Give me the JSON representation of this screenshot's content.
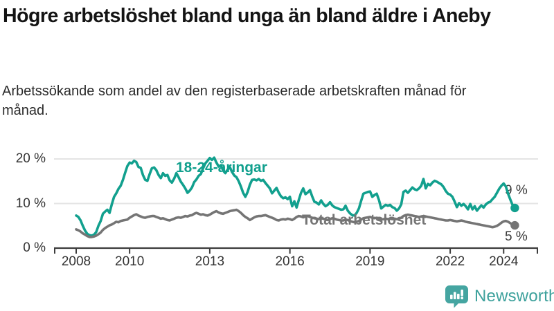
{
  "header": {
    "title": "Högre arbetslöshet bland unga än bland äldre i Aneby",
    "subtitle": "Arbetssökande som andel av den registerbaserade arbetskraften månad för månad."
  },
  "chart_data": {
    "type": "line",
    "title": "Högre arbetslöshet bland unga än bland äldre i Aneby",
    "subtitle": "Arbetssökande som andel av den registerbaserade arbetskraften månad för månad.",
    "x_start": "2008-01",
    "x_end": "2024-06",
    "x_interval": "monthly",
    "xticks": [
      2008,
      2010,
      2013,
      2016,
      2019,
      2022,
      2024
    ],
    "yticks": [
      {
        "value": 20,
        "label": "20 %"
      },
      {
        "value": 10,
        "label": "10 %"
      },
      {
        "value": 0,
        "label": "0 %"
      }
    ],
    "ylim": [
      0,
      21.7
    ],
    "grid": "horizontal",
    "series": [
      {
        "name": "18-24-åringar",
        "color": "#12a08e",
        "end_label": "9 %",
        "end_value": 9,
        "values": [
          7.3,
          7.0,
          6.2,
          5.0,
          3.9,
          3.2,
          2.9,
          2.8,
          3.0,
          3.6,
          5.0,
          6.1,
          7.7,
          8.2,
          8.6,
          7.9,
          9.8,
          11.5,
          12.3,
          13.3,
          14.0,
          15.3,
          16.9,
          18.4,
          19.2,
          19.0,
          19.6,
          19.3,
          18.2,
          18.0,
          16.4,
          15.3,
          15.1,
          16.6,
          17.9,
          18.1,
          17.5,
          16.4,
          15.7,
          16.8,
          16.2,
          16.4,
          15.2,
          14.7,
          15.6,
          16.8,
          15.9,
          14.9,
          14.2,
          13.4,
          12.4,
          12.9,
          13.6,
          14.8,
          15.4,
          16.2,
          16.6,
          17.9,
          19.0,
          19.6,
          20.2,
          19.8,
          20.3,
          19.2,
          18.3,
          18.6,
          17.4,
          16.8,
          17.6,
          18.2,
          17.1,
          16.3,
          15.9,
          15.0,
          13.8,
          12.4,
          11.5,
          12.6,
          14.2,
          15.3,
          15.4,
          15.2,
          15.5,
          15.1,
          15.3,
          14.6,
          14.0,
          13.4,
          12.3,
          12.9,
          13.5,
          12.4,
          11.6,
          11.2,
          11.4,
          11.0,
          11.5,
          9.4,
          10.5,
          9.1,
          10.8,
          12.4,
          13.4,
          12.1,
          12.5,
          13.0,
          11.6,
          10.4,
          10.2,
          9.8,
          10.7,
          9.9,
          9.4,
          9.7,
          10.3,
          9.6,
          9.2,
          9.0,
          8.8,
          8.6,
          8.7,
          9.5,
          8.4,
          7.8,
          7.4,
          7.3,
          7.9,
          8.9,
          10.6,
          12.2,
          12.4,
          12.6,
          12.7,
          11.5,
          11.9,
          12.2,
          10.8,
          8.9,
          9.3,
          9.7,
          9.5,
          9.7,
          9.2,
          9.0,
          8.4,
          8.9,
          9.8,
          12.6,
          12.9,
          12.4,
          13.0,
          13.6,
          13.2,
          13.0,
          13.4,
          14.0,
          15.5,
          13.4,
          14.4,
          14.1,
          14.7,
          15.1,
          14.9,
          14.6,
          14.3,
          13.7,
          12.8,
          12.2,
          12.0,
          11.5,
          10.4,
          9.2,
          10.1,
          9.5,
          9.9,
          9.4,
          8.7,
          9.9,
          8.7,
          9.4,
          8.4,
          9.0,
          9.6,
          9.1,
          9.8,
          10.2,
          10.4,
          11.0,
          11.5,
          12.4,
          13.3,
          14.0,
          14.5,
          13.8,
          12.2,
          10.9,
          9.7,
          9.0
        ]
      },
      {
        "name": "Total arbetslöshet",
        "color": "#757575",
        "end_label": "5 %",
        "end_value": 5,
        "values": [
          4.2,
          4.0,
          3.7,
          3.3,
          3.0,
          2.7,
          2.5,
          2.5,
          2.6,
          2.8,
          3.1,
          3.5,
          4.1,
          4.5,
          4.8,
          5.1,
          5.3,
          5.6,
          5.9,
          5.8,
          6.1,
          6.2,
          6.3,
          6.4,
          6.8,
          7.1,
          7.4,
          7.6,
          7.3,
          7.1,
          6.9,
          6.8,
          7.0,
          7.1,
          7.2,
          7.2,
          7.0,
          6.8,
          6.6,
          6.7,
          6.5,
          6.3,
          6.2,
          6.4,
          6.6,
          6.8,
          6.9,
          6.8,
          7.0,
          7.2,
          7.1,
          7.3,
          7.4,
          7.7,
          7.9,
          7.7,
          7.5,
          7.6,
          7.4,
          7.3,
          7.5,
          7.8,
          8.1,
          8.3,
          8.0,
          7.8,
          7.7,
          7.9,
          8.1,
          8.3,
          8.4,
          8.5,
          8.6,
          8.3,
          7.9,
          7.4,
          7.0,
          6.7,
          6.3,
          6.6,
          6.9,
          7.1,
          7.2,
          7.2,
          7.3,
          7.4,
          7.2,
          7.0,
          6.8,
          6.6,
          6.3,
          6.2,
          6.4,
          6.5,
          6.4,
          6.6,
          6.5,
          6.3,
          6.6,
          7.0,
          7.2,
          7.1,
          6.9,
          7.1,
          7.2,
          7.0,
          6.8,
          6.7,
          6.6,
          6.5,
          6.7,
          6.6,
          6.4,
          6.3,
          6.5,
          6.7,
          6.6,
          6.4,
          6.3,
          6.2,
          6.2,
          6.4,
          6.3,
          6.1,
          5.9,
          5.8,
          5.9,
          6.1,
          6.4,
          6.7,
          6.8,
          6.9,
          7.0,
          6.8,
          6.7,
          6.8,
          6.6,
          6.4,
          6.5,
          6.6,
          6.5,
          6.6,
          6.5,
          6.6,
          6.5,
          6.6,
          6.8,
          7.2,
          7.4,
          7.5,
          7.4,
          7.3,
          7.2,
          7.1,
          7.0,
          7.1,
          7.2,
          7.1,
          7.0,
          6.9,
          6.8,
          6.7,
          6.6,
          6.5,
          6.4,
          6.3,
          6.2,
          6.2,
          6.3,
          6.2,
          6.1,
          6.0,
          6.1,
          6.2,
          6.1,
          5.9,
          5.8,
          5.7,
          5.6,
          5.5,
          5.4,
          5.3,
          5.2,
          5.1,
          5.0,
          4.9,
          4.8,
          4.7,
          4.8,
          5.0,
          5.3,
          5.7,
          6.0,
          6.1,
          5.9,
          5.6,
          5.3,
          5.1
        ]
      }
    ],
    "colors": {
      "grid": "#e4e4e4",
      "axis": "#3c3c3c",
      "tick_text": "#333333"
    }
  },
  "footer": {
    "brand": "Newsworthy",
    "brand_color": "#3da19c",
    "logo_icon": "bar-chart-speech-bubble-icon"
  }
}
